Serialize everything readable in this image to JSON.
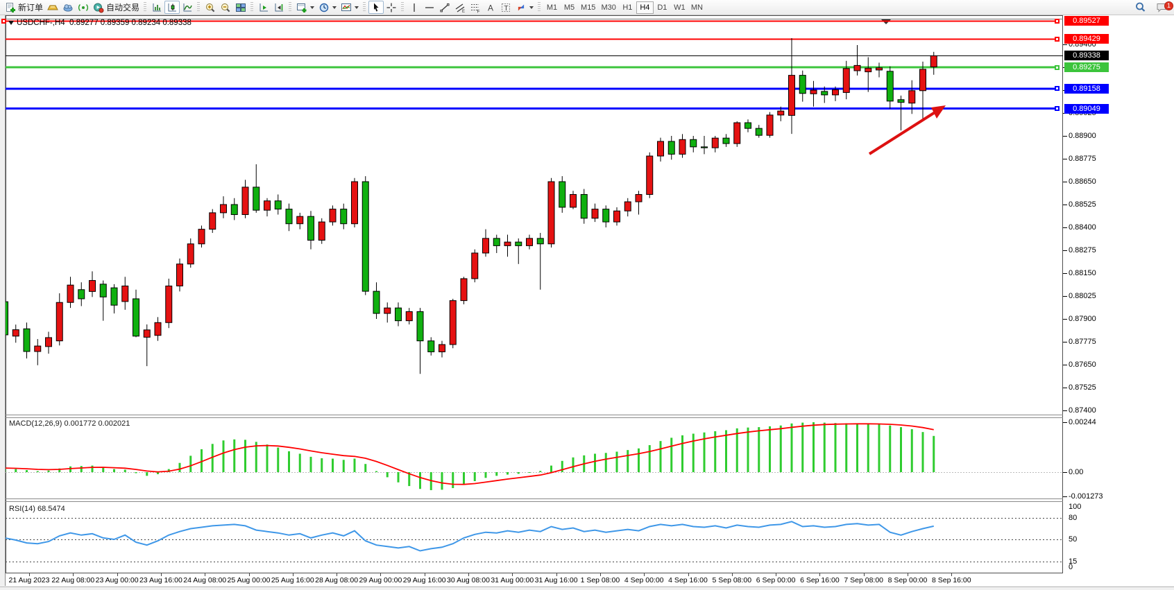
{
  "toolbar": {
    "new_order_label": "新订单",
    "auto_trading_label": "自动交易",
    "timeframes": [
      "M1",
      "M5",
      "M15",
      "M30",
      "H1",
      "H4",
      "D1",
      "W1",
      "MN"
    ],
    "active_timeframe": "H4",
    "notification_badge": "1"
  },
  "chart": {
    "symbol_title": "USDCHF-,H4",
    "ohlc_line": "0.89277 0.89359 0.89234 0.89338",
    "current_price": "0.89338",
    "axis_ticks": [
      "0.89400",
      "0.89275",
      "0.89150",
      "0.89025",
      "0.88900",
      "0.88775",
      "0.88650",
      "0.88525",
      "0.88400",
      "0.88275",
      "0.88150",
      "0.88025",
      "0.87900",
      "0.87775",
      "0.87650",
      "0.87525",
      "0.87400"
    ],
    "hlines": [
      {
        "label": "0.89527",
        "value": 0.89527,
        "color": "#ff0000",
        "width": 2
      },
      {
        "label": "0.89429",
        "value": 0.89429,
        "color": "#ff0000",
        "width": 2
      },
      {
        "label": "0.89275",
        "value": 0.89275,
        "color": "#3cc43c",
        "width": 3
      },
      {
        "label": "0.89158",
        "value": 0.89158,
        "color": "#0000ff",
        "width": 3
      },
      {
        "label": "0.89049",
        "value": 0.89049,
        "color": "#0000ff",
        "width": 3
      }
    ],
    "dates": [
      "21 Aug 2023",
      "22 Aug 08:00",
      "23 Aug 00:00",
      "23 Aug 16:00",
      "24 Aug 08:00",
      "25 Aug 00:00",
      "25 Aug 16:00",
      "28 Aug 08:00",
      "29 Aug 00:00",
      "29 Aug 16:00",
      "30 Aug 08:00",
      "31 Aug 00:00",
      "31 Aug 16:00",
      "1 Sep 08:00",
      "4 Sep 00:00",
      "4 Sep 16:00",
      "5 Sep 08:00",
      "6 Sep 00:00",
      "6 Sep 16:00",
      "7 Sep 08:00",
      "8 Sep 00:00",
      "8 Sep 16:00"
    ],
    "annotation": {
      "type": "trend-arrow",
      "color": "#dd1111"
    }
  },
  "chart_data": {
    "type": "candlestick",
    "symbol": "USDCHF",
    "timeframe": "H4",
    "up_color_convention": "red-up-green-down",
    "candles_ohlc": [
      [
        0.87994,
        0.8801,
        0.8778,
        0.87813
      ],
      [
        0.87806,
        0.87869,
        0.8777,
        0.87841
      ],
      [
        0.87846,
        0.8788,
        0.87684,
        0.87722
      ],
      [
        0.87722,
        0.8779,
        0.87647,
        0.87752
      ],
      [
        0.87749,
        0.8783,
        0.8771,
        0.87798
      ],
      [
        0.8778,
        0.8804,
        0.87755,
        0.8799
      ],
      [
        0.8799,
        0.8813,
        0.8796,
        0.88085
      ],
      [
        0.8806,
        0.881,
        0.8797,
        0.8801
      ],
      [
        0.8805,
        0.8816,
        0.8802,
        0.8811
      ],
      [
        0.8809,
        0.8811,
        0.8789,
        0.8802
      ],
      [
        0.8807,
        0.8809,
        0.8793,
        0.87975
      ],
      [
        0.87995,
        0.8813,
        0.8795,
        0.8808
      ],
      [
        0.8801,
        0.8806,
        0.878,
        0.87806
      ],
      [
        0.878,
        0.8787,
        0.87642,
        0.8784
      ],
      [
        0.8781,
        0.8791,
        0.8778,
        0.8788
      ],
      [
        0.8788,
        0.8812,
        0.8785,
        0.8808
      ],
      [
        0.8808,
        0.8823,
        0.8805,
        0.882
      ],
      [
        0.882,
        0.8834,
        0.8818,
        0.8831
      ],
      [
        0.8831,
        0.8841,
        0.8829,
        0.8839
      ],
      [
        0.8839,
        0.885,
        0.8837,
        0.8848
      ],
      [
        0.8848,
        0.8857,
        0.8845,
        0.88525
      ],
      [
        0.88525,
        0.8856,
        0.8844,
        0.8847
      ],
      [
        0.8847,
        0.8866,
        0.8845,
        0.8862
      ],
      [
        0.8862,
        0.88745,
        0.8848,
        0.88494
      ],
      [
        0.88494,
        0.8856,
        0.8846,
        0.88545
      ],
      [
        0.88545,
        0.8858,
        0.8847,
        0.885
      ],
      [
        0.885,
        0.8853,
        0.8838,
        0.8842
      ],
      [
        0.8842,
        0.8848,
        0.8839,
        0.8846
      ],
      [
        0.8846,
        0.8849,
        0.8828,
        0.8833
      ],
      [
        0.8833,
        0.8845,
        0.8831,
        0.8843
      ],
      [
        0.8843,
        0.8852,
        0.8841,
        0.885
      ],
      [
        0.885,
        0.8853,
        0.8839,
        0.8842
      ],
      [
        0.8842,
        0.8867,
        0.884,
        0.8865
      ],
      [
        0.8865,
        0.8868,
        0.8803,
        0.88051
      ],
      [
        0.88051,
        0.881,
        0.879,
        0.8793
      ],
      [
        0.8793,
        0.8799,
        0.8788,
        0.8796
      ],
      [
        0.8796,
        0.8799,
        0.8786,
        0.8789
      ],
      [
        0.8789,
        0.8796,
        0.8787,
        0.8794
      ],
      [
        0.8794,
        0.8796,
        0.876,
        0.8778
      ],
      [
        0.8778,
        0.878,
        0.877,
        0.8772
      ],
      [
        0.8772,
        0.8778,
        0.8769,
        0.8776
      ],
      [
        0.8776,
        0.8801,
        0.8774,
        0.88
      ],
      [
        0.88,
        0.8813,
        0.8798,
        0.8812
      ],
      [
        0.8812,
        0.8828,
        0.881,
        0.8826
      ],
      [
        0.8826,
        0.8839,
        0.8824,
        0.8834
      ],
      [
        0.8834,
        0.8836,
        0.8826,
        0.883
      ],
      [
        0.883,
        0.8836,
        0.8824,
        0.8832
      ],
      [
        0.8832,
        0.8834,
        0.882,
        0.883
      ],
      [
        0.883,
        0.8836,
        0.8828,
        0.8834
      ],
      [
        0.8834,
        0.8837,
        0.8806,
        0.8831
      ],
      [
        0.8831,
        0.8867,
        0.8829,
        0.8865
      ],
      [
        0.8865,
        0.8868,
        0.8848,
        0.8851
      ],
      [
        0.8851,
        0.886,
        0.885,
        0.8858
      ],
      [
        0.8858,
        0.8861,
        0.8842,
        0.8845
      ],
      [
        0.8845,
        0.8853,
        0.8843,
        0.885
      ],
      [
        0.885,
        0.8852,
        0.884,
        0.8843
      ],
      [
        0.8843,
        0.8851,
        0.8841,
        0.8849
      ],
      [
        0.8849,
        0.8856,
        0.8846,
        0.8854
      ],
      [
        0.8854,
        0.886,
        0.8847,
        0.8858
      ],
      [
        0.8858,
        0.8881,
        0.8856,
        0.8879
      ],
      [
        0.8879,
        0.8889,
        0.8876,
        0.8887
      ],
      [
        0.8887,
        0.889,
        0.8877,
        0.888
      ],
      [
        0.888,
        0.8891,
        0.8878,
        0.8888
      ],
      [
        0.8888,
        0.889,
        0.8881,
        0.8884
      ],
      [
        0.8884,
        0.889,
        0.888,
        0.88835
      ],
      [
        0.88835,
        0.889,
        0.8881,
        0.88888
      ],
      [
        0.88888,
        0.8891,
        0.8884,
        0.88858
      ],
      [
        0.88858,
        0.8898,
        0.8884,
        0.88972
      ],
      [
        0.88972,
        0.8899,
        0.8892,
        0.88941
      ],
      [
        0.88941,
        0.8896,
        0.8889,
        0.88903
      ],
      [
        0.88903,
        0.8903,
        0.8889,
        0.89014
      ],
      [
        0.89014,
        0.8906,
        0.8898,
        0.89036
      ],
      [
        0.89012,
        0.89434,
        0.88911,
        0.89231
      ],
      [
        0.89231,
        0.89257,
        0.89087,
        0.89132
      ],
      [
        0.8913,
        0.892,
        0.8906,
        0.8915
      ],
      [
        0.89143,
        0.8917,
        0.8908,
        0.89124
      ],
      [
        0.89124,
        0.8917,
        0.8909,
        0.89152
      ],
      [
        0.89137,
        0.8931,
        0.891,
        0.89268
      ],
      [
        0.89256,
        0.89396,
        0.8923,
        0.89285
      ],
      [
        0.8925,
        0.8933,
        0.8914,
        0.8927
      ],
      [
        0.8926,
        0.893,
        0.8922,
        0.89272
      ],
      [
        0.89253,
        0.8928,
        0.89048,
        0.8909
      ],
      [
        0.89098,
        0.8912,
        0.8893,
        0.89083
      ],
      [
        0.89079,
        0.89204,
        0.8902,
        0.89147
      ],
      [
        0.89147,
        0.89306,
        0.8899,
        0.89264
      ],
      [
        0.89277,
        0.89359,
        0.89234,
        0.89338
      ]
    ],
    "macd": {
      "label": "MACD(12,26,9)",
      "main_value": "0.001772",
      "signal_value": "0.002021",
      "axis_labels": [
        "0.00244",
        "0.00",
        "-0.001273"
      ],
      "histogram": [
        0.0002,
        0.00015,
        0.0001,
        5e-05,
        8e-05,
        0.00018,
        0.00028,
        0.0003,
        0.00032,
        0.00025,
        0.00015,
        0.00012,
        -5e-05,
        -0.00018,
        -0.0001,
        0.00015,
        0.00045,
        0.0008,
        0.00112,
        0.00138,
        0.00155,
        0.0016,
        0.00158,
        0.00148,
        0.00135,
        0.0012,
        0.00102,
        0.0009,
        0.00075,
        0.00068,
        0.00066,
        0.0006,
        0.00066,
        0.0004,
        5e-05,
        -0.00025,
        -0.0005,
        -0.00068,
        -0.00082,
        -0.00088,
        -0.00086,
        -0.00078,
        -0.00062,
        -0.00044,
        -0.00028,
        -0.00018,
        -0.00012,
        -8e-05,
        -2e-05,
        6e-05,
        0.00032,
        0.00055,
        0.00072,
        0.00082,
        0.0009,
        0.00094,
        0.001,
        0.00108,
        0.00116,
        0.00132,
        0.00152,
        0.00168,
        0.0018,
        0.00188,
        0.00194,
        0.002,
        0.00205,
        0.00214,
        0.00218,
        0.0022,
        0.00224,
        0.00228,
        0.00238,
        0.00242,
        0.00244,
        0.00242,
        0.0024,
        0.00239,
        0.00238,
        0.00236,
        0.00234,
        0.00228,
        0.0022,
        0.0021,
        0.00196,
        0.00177
      ]
    },
    "rsi": {
      "label": "RSI(14)",
      "value": "68.5474",
      "levels": [
        "100",
        "80",
        "50",
        "15",
        "0"
      ],
      "series": [
        52,
        49,
        45,
        44,
        47,
        55,
        59,
        56,
        58,
        52,
        50,
        56,
        46,
        42,
        48,
        56,
        61,
        65,
        67,
        69,
        70,
        71,
        69,
        63,
        61,
        59,
        56,
        58,
        52,
        56,
        59,
        55,
        62,
        48,
        42,
        40,
        38,
        40,
        34,
        37,
        39,
        44,
        52,
        57,
        60,
        59,
        62,
        60,
        63,
        61,
        68,
        64,
        66,
        61,
        63,
        60,
        62,
        64,
        62,
        68,
        71,
        69,
        71,
        68,
        67,
        69,
        66,
        70,
        68,
        67,
        70,
        71,
        75,
        68,
        69,
        67,
        68,
        71,
        72,
        70,
        71,
        60,
        56,
        61,
        65,
        68.5
      ]
    }
  },
  "colors": {
    "candle_up": "#e51212",
    "candle_down": "#10b010",
    "macd_hist": "#2fcc2f",
    "macd_signal": "#ff0000",
    "rsi_line": "#3e97e8",
    "current_price_bg": "#000000"
  }
}
